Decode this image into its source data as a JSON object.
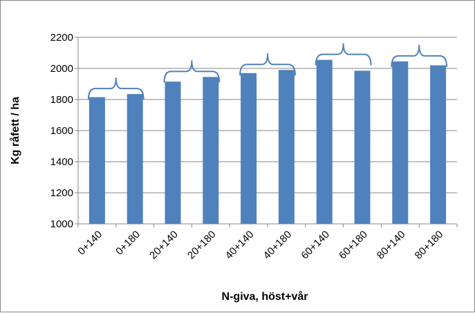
{
  "chart_data": {
    "type": "bar",
    "categories": [
      "0+140",
      "0+180",
      "20+140",
      "20+180",
      "40+140",
      "40+180",
      "60+140",
      "60+180",
      "80+140",
      "80+180"
    ],
    "values": [
      1815,
      1835,
      1915,
      1945,
      1970,
      1990,
      2055,
      1985,
      2045,
      2020
    ],
    "xlabel": "N-giva, höst+vår",
    "ylabel": "Kg råfett / ha",
    "ylim": [
      1000,
      2200
    ],
    "yticks": [
      1000,
      1200,
      1400,
      1600,
      1800,
      2000,
      2200
    ],
    "grid": true,
    "legend": "none",
    "colors": {
      "bar": "#4F81BD",
      "brace": "#4F81BD",
      "grid": "#868686"
    }
  }
}
